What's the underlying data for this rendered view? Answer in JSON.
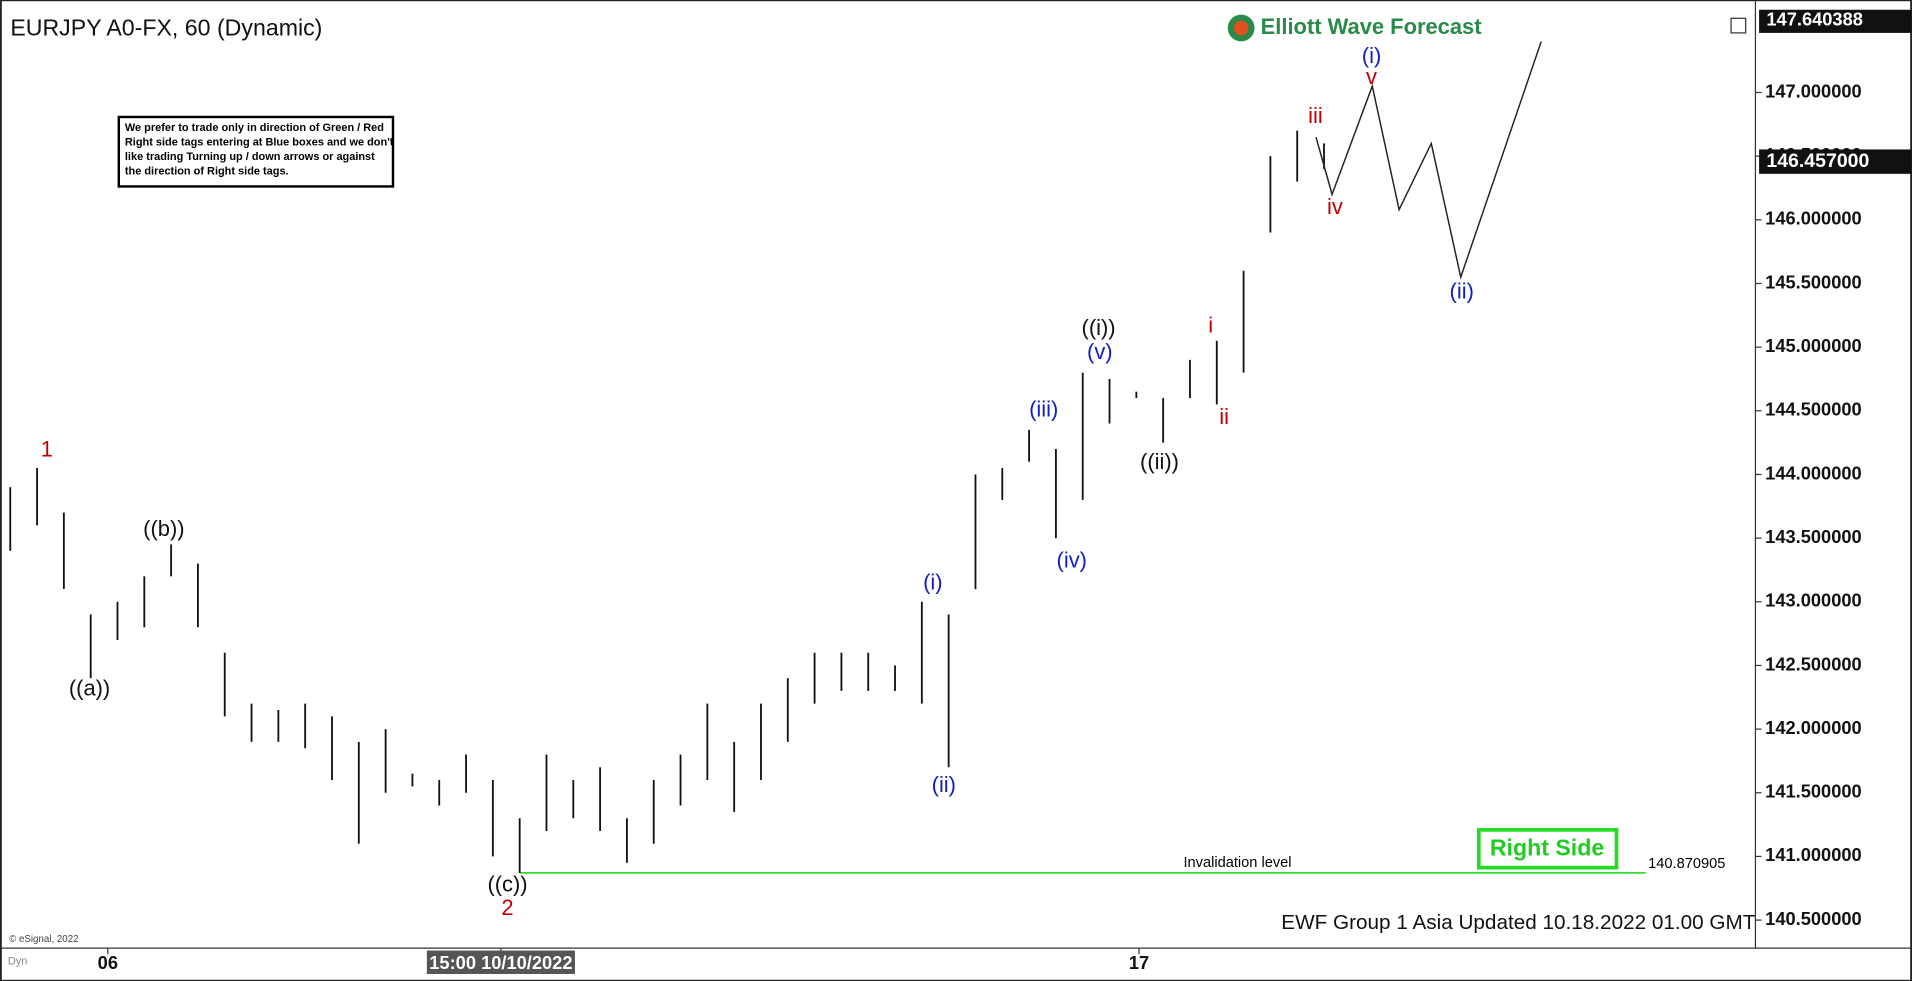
{
  "chart_data": {
    "type": "ohlc",
    "title": "EURJPY A0-FX, 60 (Dynamic)",
    "brand": "Elliott Wave Forecast",
    "note": [
      "We prefer to trade only in direction of Green / Red",
      "Right side tags entering at Blue boxes and we don't",
      "like trading Turning up / down arrows or against",
      "the direction of Right side tags."
    ],
    "x": [
      0,
      1,
      2,
      3,
      4,
      5,
      6,
      7,
      8,
      9,
      10,
      11,
      12,
      13,
      14,
      15,
      16,
      17,
      18,
      19,
      20,
      21,
      22,
      23,
      24,
      25,
      26,
      27,
      28,
      29,
      30,
      31,
      32,
      33,
      34,
      35,
      36,
      37,
      38,
      39,
      40,
      41,
      42,
      43,
      44,
      45,
      46,
      47,
      48,
      49
    ],
    "high": [
      143.9,
      144.05,
      143.7,
      142.9,
      143.0,
      143.2,
      143.45,
      143.3,
      142.6,
      142.2,
      142.15,
      142.2,
      142.1,
      141.9,
      142.0,
      141.65,
      141.6,
      141.8,
      141.6,
      141.3,
      141.8,
      141.6,
      141.7,
      141.3,
      141.6,
      141.8,
      142.2,
      141.9,
      142.2,
      142.4,
      142.6,
      142.6,
      142.6,
      142.5,
      143.0,
      142.9,
      144.0,
      144.05,
      144.35,
      144.2,
      144.8,
      144.75,
      144.65,
      144.6,
      144.9,
      145.05,
      145.6,
      146.5,
      146.7,
      146.6
    ],
    "low": [
      143.4,
      143.6,
      143.1,
      142.4,
      142.7,
      142.8,
      143.2,
      142.8,
      142.1,
      141.9,
      141.9,
      141.85,
      141.6,
      141.1,
      141.5,
      141.55,
      141.4,
      141.5,
      141.0,
      140.87,
      141.2,
      141.3,
      141.2,
      140.95,
      141.1,
      141.4,
      141.6,
      141.35,
      141.6,
      141.9,
      142.2,
      142.3,
      142.3,
      142.3,
      142.2,
      141.7,
      143.1,
      143.8,
      144.1,
      143.5,
      143.8,
      144.4,
      144.6,
      144.25,
      144.6,
      144.55,
      144.8,
      145.9,
      146.3,
      146.4
    ],
    "color": "#111111",
    "projection": {
      "x": [
        48.7,
        49.3,
        50.8,
        51.8,
        53.0,
        54.1,
        57.1
      ],
      "values": [
        146.65,
        146.2,
        147.05,
        146.08,
        146.6,
        145.55,
        147.4
      ],
      "color": "#222222"
    },
    "xlim": [
      -0.36,
      65.09
    ],
    "xticks": [
      {
        "value": 3.64,
        "label": "06"
      },
      {
        "value": 18.3,
        "label": "15:00 10/10/2022"
      },
      {
        "value": 42.1,
        "label": "17"
      }
    ],
    "ylim": [
      140.28,
      147.640388
    ],
    "yticks": [
      {
        "value": 140.5,
        "label": "140.500000"
      },
      {
        "value": 141,
        "label": "141.000000"
      },
      {
        "value": 141.5,
        "label": "141.500000"
      },
      {
        "value": 142,
        "label": "142.000000"
      },
      {
        "value": 142.5,
        "label": "142.500000"
      },
      {
        "value": 143,
        "label": "143.000000"
      },
      {
        "value": 143.5,
        "label": "143.500000"
      },
      {
        "value": 144,
        "label": "144.000000"
      },
      {
        "value": 144.5,
        "label": "144.500000"
      },
      {
        "value": 145,
        "label": "145.000000"
      },
      {
        "value": 145.5,
        "label": "145.500000"
      },
      {
        "value": 146,
        "label": "146.000000"
      },
      {
        "value": 146.5,
        "label": "146.500000"
      },
      {
        "value": 147,
        "label": "147.000000"
      }
    ],
    "top_tag": "147.640388",
    "last_price": {
      "value": 146.457,
      "label": "146.457000"
    },
    "invalidation": {
      "value": 140.870905,
      "label": "140.870905",
      "text": "Invalidation level",
      "color": "#33dd33"
    },
    "wave_labels": [
      "1",
      "((a))",
      "((b))",
      "((c))",
      "2",
      "(i)",
      "(ii)",
      "(iii)",
      "(iv)",
      "(v)",
      "((i))",
      "((ii))",
      "i",
      "ii",
      "iii",
      "iv",
      "v",
      "(i)",
      "(ii)"
    ],
    "right_side": "Right Side",
    "footer": "EWF Group 1 Asia Updated 10.18.2022 01.00 GMT",
    "copyright": "© eSignal, 2022",
    "dyn": "Dyn"
  }
}
